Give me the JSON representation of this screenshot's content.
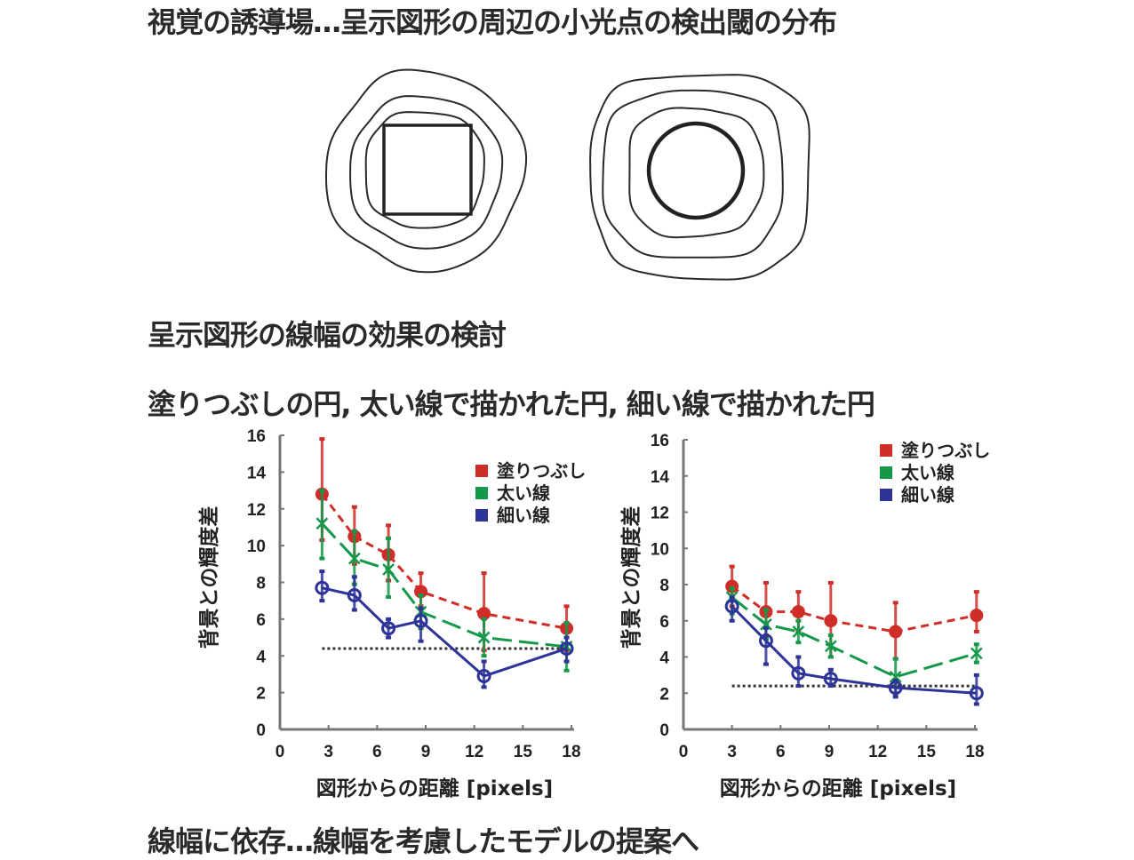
{
  "headings": {
    "title": "視覚の誘導場…呈示図形の周辺の小光点の検出閾の分布",
    "section": "呈示図形の線幅の効果の検討",
    "conditions": "塗りつぶしの円, 太い線で描かれた円, 細い線で描かれた円",
    "conclusion": "線幅に依存…線幅を考慮したモデルの提案へ"
  },
  "colors": {
    "filled": "#cf2d28",
    "thick": "#14994a",
    "thin": "#2e3398",
    "reference": "#333333"
  },
  "chart_data": [
    {
      "type": "line",
      "xlabel": "図形からの距離 [pixels]",
      "ylabel": "背景との輝度差",
      "xlim": [
        0,
        18
      ],
      "ylim": [
        0,
        16
      ],
      "xticks": [
        0,
        3,
        6,
        9,
        12,
        15,
        18
      ],
      "yticks": [
        0,
        2,
        4,
        6,
        8,
        10,
        12,
        14,
        16
      ],
      "legend_position": "top-right",
      "reference_line": {
        "y": 4.4,
        "x": [
          2.6,
          17.7
        ],
        "style": "dotted"
      },
      "series": [
        {
          "name": "塗りつぶし",
          "marker": "filled-circle",
          "line": "short-dash",
          "x": [
            2.6,
            4.6,
            6.7,
            8.7,
            12.6,
            17.7
          ],
          "y": [
            12.8,
            10.5,
            9.5,
            7.5,
            6.3,
            5.5
          ],
          "err_low": [
            10.3,
            9.0,
            8.1,
            6.7,
            4.3,
            4.3
          ],
          "err_high": [
            15.8,
            12.1,
            11.1,
            8.5,
            8.5,
            6.7
          ]
        },
        {
          "name": "太い線",
          "marker": "x",
          "line": "long-dash",
          "x": [
            2.6,
            4.6,
            6.7,
            8.7,
            12.6,
            17.7
          ],
          "y": [
            11.2,
            9.3,
            8.7,
            6.4,
            5.0,
            4.5
          ],
          "err_low": [
            9.3,
            7.9,
            7.2,
            5.5,
            4.0,
            3.2
          ],
          "err_high": [
            13.0,
            10.8,
            10.4,
            7.3,
            6.0,
            5.8
          ]
        },
        {
          "name": "細い線",
          "marker": "open-circle",
          "line": "solid",
          "x": [
            2.6,
            4.6,
            6.7,
            8.7,
            12.6,
            17.7
          ],
          "y": [
            7.7,
            7.3,
            5.5,
            5.9,
            2.9,
            4.4
          ],
          "err_low": [
            7.0,
            6.5,
            5.0,
            4.8,
            2.3,
            3.7
          ],
          "err_high": [
            8.6,
            8.3,
            6.0,
            6.6,
            3.7,
            5.0
          ]
        }
      ]
    },
    {
      "type": "line",
      "xlabel": "図形からの距離 [pixels]",
      "ylabel": "背景との輝度差",
      "xlim": [
        0,
        18
      ],
      "ylim": [
        0,
        16
      ],
      "xticks": [
        0,
        3,
        6,
        9,
        12,
        15,
        18
      ],
      "yticks": [
        0,
        2,
        4,
        6,
        8,
        10,
        12,
        14,
        16
      ],
      "legend_position": "top-right",
      "reference_line": {
        "y": 2.4,
        "x": [
          3.0,
          18.0
        ],
        "style": "dotted"
      },
      "series": [
        {
          "name": "塗りつぶし",
          "marker": "filled-circle",
          "line": "short-dash",
          "x": [
            3.0,
            5.1,
            7.1,
            9.1,
            13.1,
            18.1
          ],
          "y": [
            7.9,
            6.5,
            6.5,
            6.0,
            5.4,
            6.3
          ],
          "err_low": [
            6.8,
            5.2,
            5.4,
            4.0,
            3.9,
            5.4
          ],
          "err_high": [
            9.0,
            8.1,
            7.6,
            8.1,
            7.0,
            7.6
          ]
        },
        {
          "name": "太い線",
          "marker": "x",
          "line": "long-dash",
          "x": [
            3.0,
            5.1,
            7.1,
            9.1,
            13.1,
            18.1
          ],
          "y": [
            7.3,
            5.8,
            5.4,
            4.6,
            2.9,
            4.2
          ],
          "err_low": [
            6.4,
            5.0,
            4.8,
            4.0,
            2.0,
            3.7
          ],
          "err_high": [
            7.8,
            6.6,
            6.0,
            5.2,
            3.9,
            4.7
          ]
        },
        {
          "name": "細い線",
          "marker": "open-circle",
          "line": "solid",
          "x": [
            3.0,
            5.1,
            7.1,
            9.1,
            13.1,
            18.1
          ],
          "y": [
            6.8,
            4.9,
            3.1,
            2.8,
            2.3,
            2.0
          ],
          "err_low": [
            6.0,
            3.6,
            2.4,
            2.4,
            1.8,
            1.4
          ],
          "err_high": [
            7.3,
            5.6,
            4.0,
            3.3,
            2.7,
            3.0
          ]
        }
      ]
    }
  ]
}
